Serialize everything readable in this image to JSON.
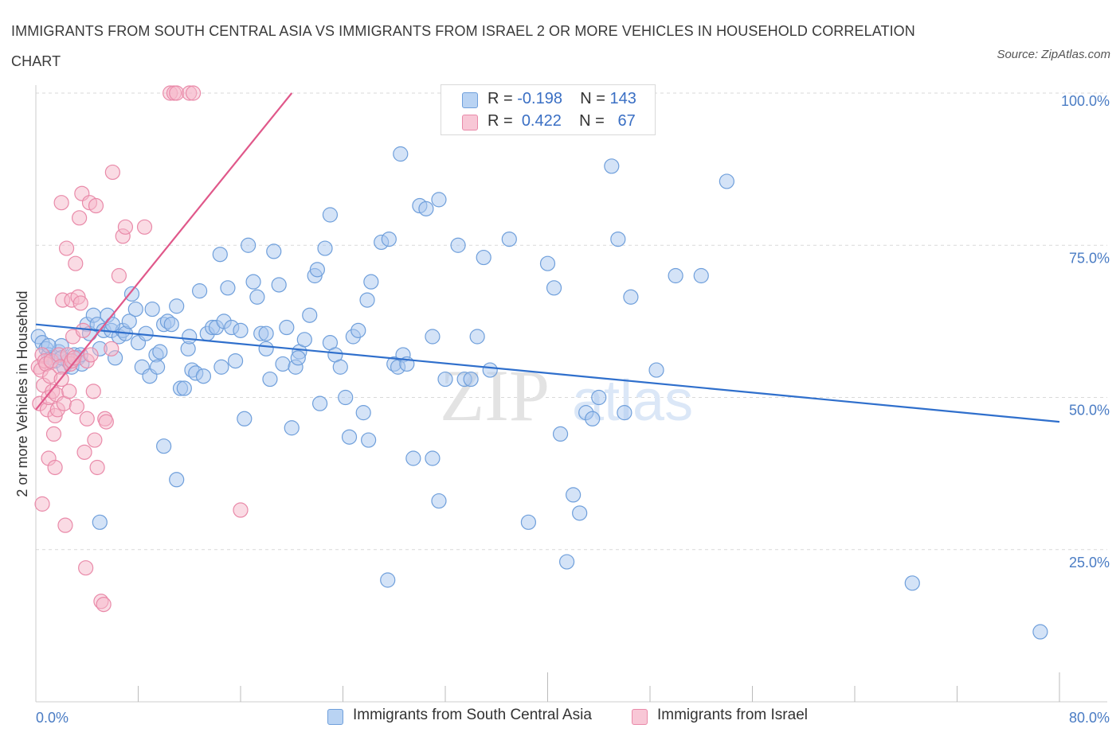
{
  "title": "IMMIGRANTS FROM SOUTH CENTRAL ASIA VS IMMIGRANTS FROM ISRAEL 2 OR MORE VEHICLES IN HOUSEHOLD CORRELATION CHART",
  "source": "Source: ZipAtlas.com",
  "watermark": {
    "zip": "ZIP",
    "atlas": "atlas"
  },
  "legend": {
    "series1": {
      "r_label": "R =",
      "r_value": "-0.198",
      "n_label": "N =",
      "n_value": "143"
    },
    "series2": {
      "r_label": "R =",
      "r_value": "0.422",
      "n_label": "N =",
      "n_value": "67"
    }
  },
  "colors": {
    "blue_fill": "#a9c8f0",
    "blue_stroke": "#6f9fdb",
    "blue_line": "#2f6fcc",
    "pink_fill": "#f6b7ca",
    "pink_stroke": "#e98aa9",
    "pink_line": "#e0588a",
    "tick_text": "#4a7cc4",
    "grid": "#d9d9d9"
  },
  "chart_data": {
    "type": "scatter",
    "title": "IMMIGRANTS FROM SOUTH CENTRAL ASIA VS IMMIGRANTS FROM ISRAEL 2 OR MORE VEHICLES IN HOUSEHOLD CORRELATION CHART",
    "xlabel": "",
    "ylabel": "2 or more Vehicles in Household",
    "xlim": [
      0,
      80
    ],
    "ylim": [
      0,
      100
    ],
    "x_ticks": [
      "0.0%",
      "80.0%"
    ],
    "y_ticks": [
      {
        "value": 25,
        "label": "25.0%"
      },
      {
        "value": 50,
        "label": "50.0%"
      },
      {
        "value": 75,
        "label": "75.0%"
      },
      {
        "value": 100,
        "label": "100.0%"
      }
    ],
    "grid": "horizontal dashed",
    "legend_position": "top-center",
    "series": [
      {
        "name": "Immigrants from South Central Asia",
        "color": "#a9c8f0",
        "trend": {
          "x": [
            0,
            80
          ],
          "y": [
            62.0,
            46.0
          ]
        },
        "points": [
          [
            0.2,
            60.0
          ],
          [
            0.5,
            59.0
          ],
          [
            0.8,
            58.0
          ],
          [
            1.0,
            57.0
          ],
          [
            1.2,
            56.5
          ],
          [
            1.5,
            56.0
          ],
          [
            1.8,
            57.5
          ],
          [
            2.0,
            58.5
          ],
          [
            2.2,
            55.0
          ],
          [
            2.5,
            56.0
          ],
          [
            2.8,
            55.0
          ],
          [
            3.0,
            57.0
          ],
          [
            3.3,
            56.5
          ],
          [
            3.6,
            55.5
          ],
          [
            4.0,
            62.0
          ],
          [
            4.2,
            60.5
          ],
          [
            4.5,
            63.5
          ],
          [
            4.8,
            62.0
          ],
          [
            5.0,
            58.0
          ],
          [
            5.3,
            61.0
          ],
          [
            5.6,
            63.5
          ],
          [
            5.9,
            61.0
          ],
          [
            6.2,
            56.5
          ],
          [
            6.5,
            60.0
          ],
          [
            6.8,
            61.0
          ],
          [
            7.0,
            60.5
          ],
          [
            7.3,
            62.5
          ],
          [
            7.5,
            67.0
          ],
          [
            7.8,
            64.5
          ],
          [
            8.0,
            59.0
          ],
          [
            8.3,
            55.0
          ],
          [
            8.6,
            60.5
          ],
          [
            8.9,
            53.5
          ],
          [
            9.1,
            64.5
          ],
          [
            9.4,
            57.0
          ],
          [
            9.7,
            57.5
          ],
          [
            10.0,
            62.0
          ],
          [
            10.3,
            62.5
          ],
          [
            10.6,
            62.0
          ],
          [
            11.0,
            65.0
          ],
          [
            11.3,
            51.5
          ],
          [
            11.6,
            51.5
          ],
          [
            11.9,
            58.0
          ],
          [
            12.2,
            54.5
          ],
          [
            12.5,
            54.0
          ],
          [
            12.8,
            67.5
          ],
          [
            13.1,
            53.5
          ],
          [
            13.4,
            60.5
          ],
          [
            13.8,
            61.5
          ],
          [
            14.1,
            61.5
          ],
          [
            14.4,
            73.5
          ],
          [
            14.7,
            62.5
          ],
          [
            15.0,
            68.0
          ],
          [
            15.3,
            61.5
          ],
          [
            15.6,
            56.0
          ],
          [
            16.0,
            61.0
          ],
          [
            16.3,
            46.5
          ],
          [
            16.6,
            75.0
          ],
          [
            17.0,
            69.0
          ],
          [
            17.3,
            66.5
          ],
          [
            17.6,
            60.5
          ],
          [
            18.0,
            60.5
          ],
          [
            18.3,
            53.0
          ],
          [
            18.6,
            74.0
          ],
          [
            19.0,
            68.5
          ],
          [
            19.3,
            55.5
          ],
          [
            19.6,
            61.5
          ],
          [
            20.0,
            45.0
          ],
          [
            20.3,
            55.0
          ],
          [
            20.6,
            57.5
          ],
          [
            21.0,
            59.5
          ],
          [
            21.4,
            63.5
          ],
          [
            21.8,
            70.0
          ],
          [
            22.2,
            49.0
          ],
          [
            22.6,
            74.5
          ],
          [
            23.0,
            59.0
          ],
          [
            23.4,
            57.0
          ],
          [
            23.8,
            55.0
          ],
          [
            24.2,
            50.0
          ],
          [
            24.5,
            43.5
          ],
          [
            24.8,
            60.0
          ],
          [
            25.2,
            61.0
          ],
          [
            25.6,
            47.5
          ],
          [
            25.9,
            66.0
          ],
          [
            26.2,
            69.0
          ],
          [
            27.0,
            75.5
          ],
          [
            27.6,
            76.0
          ],
          [
            28.0,
            55.5
          ],
          [
            28.3,
            55.0
          ],
          [
            28.7,
            57.0
          ],
          [
            29.0,
            55.5
          ],
          [
            29.5,
            40.0
          ],
          [
            30.0,
            81.5
          ],
          [
            30.5,
            81.0
          ],
          [
            31.0,
            60.0
          ],
          [
            31.0,
            40.0
          ],
          [
            31.5,
            33.0
          ],
          [
            32.0,
            53.0
          ],
          [
            33.0,
            75.0
          ],
          [
            33.5,
            53.0
          ],
          [
            34.0,
            53.0
          ],
          [
            34.5,
            60.0
          ],
          [
            35.0,
            73.0
          ],
          [
            35.5,
            54.5
          ],
          [
            37.0,
            76.0
          ],
          [
            38.5,
            29.5
          ],
          [
            40.0,
            72.0
          ],
          [
            40.5,
            68.0
          ],
          [
            41.0,
            44.0
          ],
          [
            41.5,
            23.0
          ],
          [
            42.0,
            34.0
          ],
          [
            42.5,
            31.0
          ],
          [
            43.0,
            47.5
          ],
          [
            43.5,
            46.5
          ],
          [
            44.0,
            50.0
          ],
          [
            45.0,
            88.0
          ],
          [
            45.5,
            76.0
          ],
          [
            46.0,
            47.5
          ],
          [
            46.5,
            66.5
          ],
          [
            48.5,
            54.5
          ],
          [
            50.0,
            70.0
          ],
          [
            52.0,
            70.0
          ],
          [
            54.0,
            85.5
          ],
          [
            26.0,
            43.0
          ],
          [
            28.5,
            90.0
          ],
          [
            5.0,
            29.5
          ],
          [
            10.0,
            42.0
          ],
          [
            11.0,
            36.5
          ],
          [
            14.5,
            55.0
          ],
          [
            12.0,
            60.0
          ],
          [
            78.5,
            11.5
          ],
          [
            68.5,
            19.5
          ],
          [
            23.0,
            80.0
          ],
          [
            22.0,
            71.0
          ],
          [
            31.5,
            82.5
          ],
          [
            3.5,
            57.0
          ],
          [
            2.0,
            56.5
          ],
          [
            1.0,
            58.5
          ],
          [
            9.5,
            55.0
          ],
          [
            18.0,
            58.0
          ],
          [
            20.5,
            56.5
          ],
          [
            6.0,
            62.0
          ],
          [
            27.5,
            20.0
          ]
        ]
      },
      {
        "name": "Immigrants from Israel",
        "color": "#f6b7ca",
        "trend": {
          "x": [
            0,
            20.0
          ],
          "y": [
            48.0,
            100.0
          ]
        },
        "points": [
          [
            0.2,
            55.0
          ],
          [
            0.3,
            49.0
          ],
          [
            0.4,
            54.5
          ],
          [
            0.5,
            57.0
          ],
          [
            0.5,
            32.5
          ],
          [
            0.6,
            52.0
          ],
          [
            0.7,
            56.0
          ],
          [
            0.8,
            55.5
          ],
          [
            0.9,
            48.0
          ],
          [
            1.0,
            50.0
          ],
          [
            1.0,
            40.0
          ],
          [
            1.1,
            53.5
          ],
          [
            1.2,
            56.0
          ],
          [
            1.3,
            51.0
          ],
          [
            1.4,
            44.0
          ],
          [
            1.5,
            38.5
          ],
          [
            1.5,
            47.0
          ],
          [
            1.6,
            50.5
          ],
          [
            1.7,
            48.0
          ],
          [
            1.8,
            57.0
          ],
          [
            1.9,
            55.0
          ],
          [
            2.0,
            53.0
          ],
          [
            2.0,
            82.0
          ],
          [
            2.1,
            66.0
          ],
          [
            2.2,
            49.0
          ],
          [
            2.3,
            29.0
          ],
          [
            2.4,
            74.5
          ],
          [
            2.5,
            57.0
          ],
          [
            2.6,
            51.0
          ],
          [
            2.7,
            55.5
          ],
          [
            2.8,
            66.0
          ],
          [
            2.8,
            56.0
          ],
          [
            2.9,
            60.0
          ],
          [
            3.0,
            56.5
          ],
          [
            3.1,
            72.0
          ],
          [
            3.2,
            48.5
          ],
          [
            3.3,
            66.5
          ],
          [
            3.4,
            79.5
          ],
          [
            3.5,
            65.5
          ],
          [
            3.6,
            83.5
          ],
          [
            3.7,
            61.0
          ],
          [
            3.8,
            41.0
          ],
          [
            3.9,
            22.0
          ],
          [
            4.0,
            46.5
          ],
          [
            4.0,
            56.0
          ],
          [
            4.2,
            82.0
          ],
          [
            4.3,
            57.0
          ],
          [
            4.5,
            51.0
          ],
          [
            4.6,
            43.0
          ],
          [
            4.7,
            81.5
          ],
          [
            4.8,
            38.5
          ],
          [
            5.1,
            16.5
          ],
          [
            5.3,
            16.0
          ],
          [
            5.4,
            46.5
          ],
          [
            5.5,
            46.0
          ],
          [
            5.9,
            58.0
          ],
          [
            6.0,
            87.0
          ],
          [
            6.5,
            70.0
          ],
          [
            6.8,
            76.5
          ],
          [
            7.0,
            78.0
          ],
          [
            8.5,
            78.0
          ],
          [
            10.5,
            100.0
          ],
          [
            10.8,
            100.0
          ],
          [
            11.0,
            100.0
          ],
          [
            12.0,
            100.0
          ],
          [
            12.3,
            100.0
          ],
          [
            16.0,
            31.5
          ]
        ]
      }
    ]
  },
  "bottom_legend": {
    "series1": "Immigrants from South Central Asia",
    "series2": "Immigrants from Israel"
  }
}
